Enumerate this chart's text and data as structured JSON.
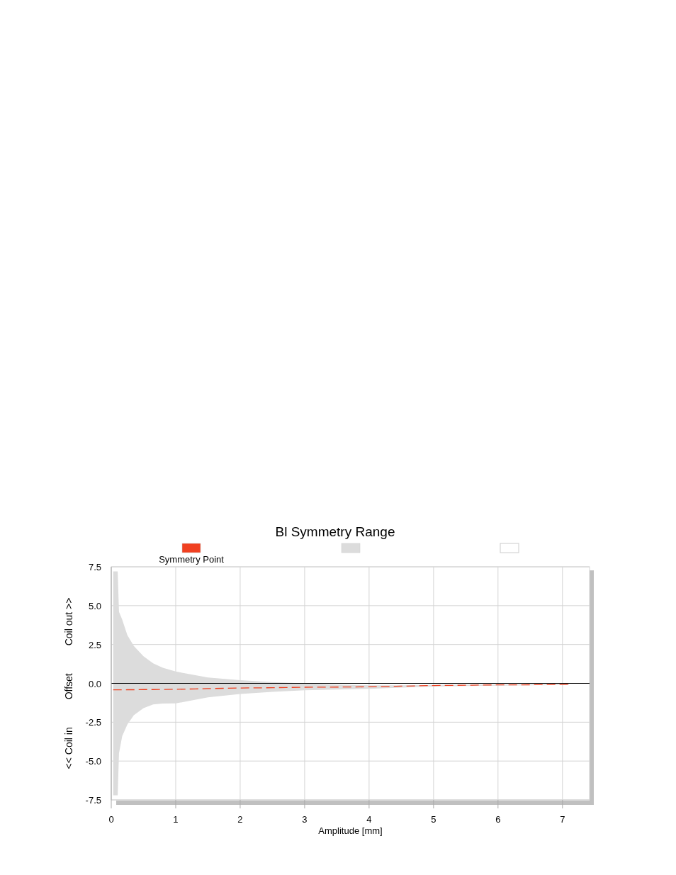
{
  "chart_data": {
    "type": "line",
    "title": "Bl Symmetry Range",
    "xlabel": "Amplitude [mm]",
    "ylabel": "<< Coil in          Offset          Coil out >>",
    "xlim": [
      0,
      7.42
    ],
    "xticks": [
      0,
      1,
      2,
      3,
      4,
      5,
      6,
      7
    ],
    "ylim": [
      -7.5,
      7.5
    ],
    "yticks": [
      {
        "value": -7.5,
        "label": "-7.5"
      },
      {
        "value": -5,
        "label": "-5.0"
      },
      {
        "value": -2.5,
        "label": "-2.5"
      },
      {
        "value": 0,
        "label": "0.0"
      },
      {
        "value": 2.5,
        "label": "2.5"
      },
      {
        "value": 5,
        "label": "5.0"
      },
      {
        "value": 7.5,
        "label": "7.5"
      }
    ],
    "grid": true,
    "legend": "top",
    "ref_lines": [
      {
        "axis": "y",
        "value": 0,
        "color": "#000000"
      }
    ],
    "series": [
      {
        "name": "Symmetry Point",
        "color": "#f04020",
        "line_style": "dashed",
        "x": [
          0.03,
          0.1,
          0.12,
          0.17,
          0.25,
          0.35,
          0.5,
          0.65,
          0.8,
          1,
          1.5,
          2,
          2.5,
          3,
          3.5,
          4,
          4.5,
          5,
          5.5,
          6,
          6.5,
          7,
          7.1
        ],
        "values": [
          -0.42,
          -0.42,
          -0.42,
          -0.42,
          -0.41,
          -0.41,
          -0.4,
          -0.4,
          -0.39,
          -0.38,
          -0.34,
          -0.3,
          -0.28,
          -0.25,
          -0.24,
          -0.22,
          -0.18,
          -0.14,
          -0.12,
          -0.1,
          -0.09,
          -0.07,
          -0.06
        ],
        "upper": [
          7.2,
          7.2,
          4.6,
          4.1,
          3.1,
          2.4,
          1.74,
          1.29,
          1.0,
          0.76,
          0.38,
          0.2,
          0.08,
          0,
          -0.08,
          -0.12,
          -0.12,
          -0.1,
          -0.09,
          -0.08,
          -0.07,
          -0.05,
          -0.05
        ],
        "lower": [
          -7.2,
          -7.2,
          -4.5,
          -3.4,
          -2.65,
          -2.05,
          -1.6,
          -1.36,
          -1.3,
          -1.29,
          -0.9,
          -0.68,
          -0.55,
          -0.45,
          -0.4,
          -0.35,
          -0.27,
          -0.2,
          -0.17,
          -0.15,
          -0.13,
          -0.1,
          -0.1
        ]
      }
    ]
  }
}
